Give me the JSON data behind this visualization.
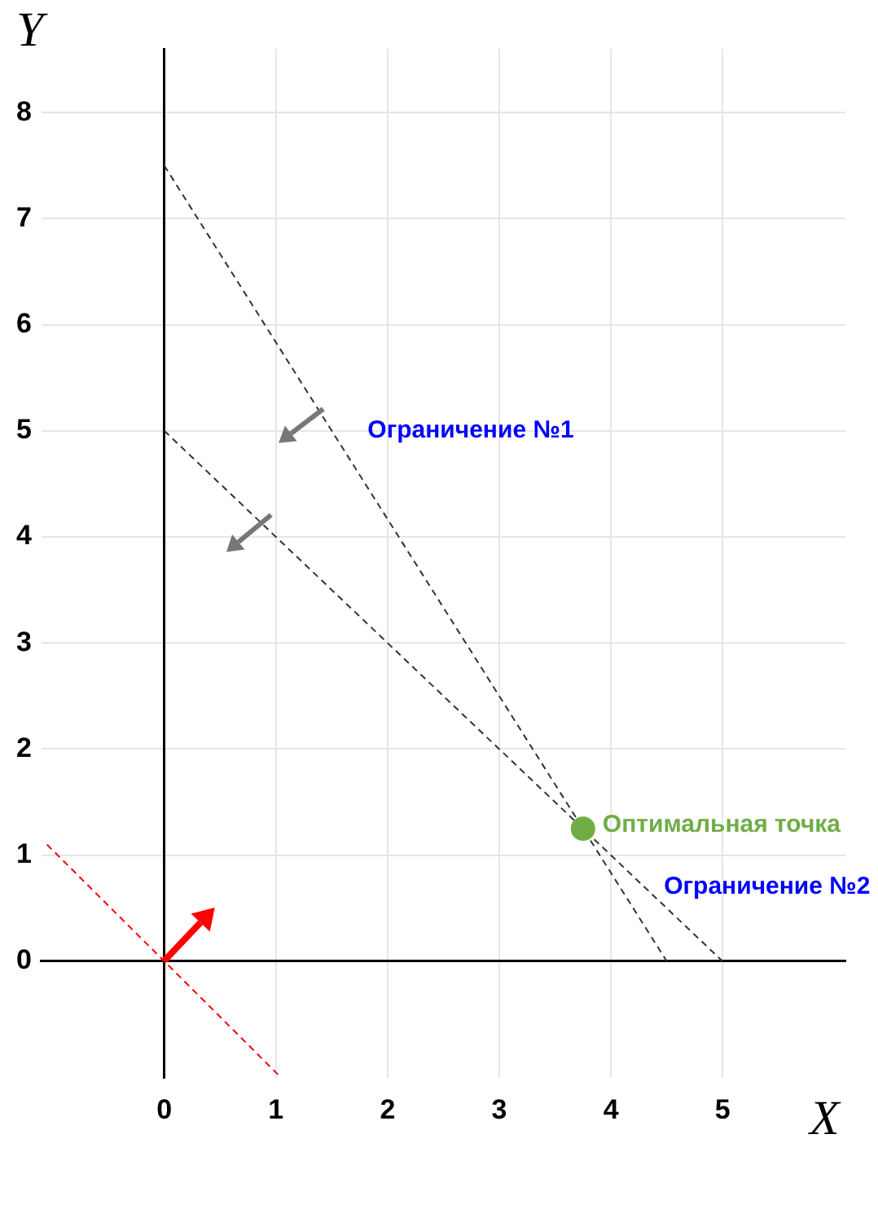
{
  "chart_data": {
    "type": "line",
    "xlabel": "X",
    "ylabel": "Y",
    "xlim": [
      -1.1,
      6.1
    ],
    "ylim": [
      -1.1,
      8.6
    ],
    "xticks": [
      0,
      1,
      2,
      3,
      4,
      5
    ],
    "yticks": [
      0,
      1,
      2,
      3,
      4,
      5,
      6,
      7,
      8
    ],
    "grid": true,
    "legend": false,
    "series": [
      {
        "color": "#333333",
        "x": [
          0,
          4.5
        ],
        "values": [
          7.5,
          0
        ],
        "line_style": "dashed",
        "marker": "none"
      },
      {
        "color": "#333333",
        "x": [
          0,
          5
        ],
        "values": [
          5,
          0
        ],
        "line_style": "dashed",
        "marker": "none"
      },
      {
        "color": "#ff0000",
        "x": [
          -1.05,
          1.05
        ],
        "values": [
          1.1,
          -1.1
        ],
        "line_style": "dashed",
        "marker": "none"
      },
      {
        "type": "scatter",
        "color": "#70ad47",
        "x": [
          3.75
        ],
        "values": [
          1.25
        ],
        "marker": "circle"
      }
    ],
    "annotations": [
      {
        "text": "Ограничение №1",
        "x": 1.5,
        "y": 5
      },
      {
        "text": "Оптимальная точка",
        "x": 3.75,
        "y": 1.25
      },
      {
        "text": "Ограничение №2",
        "x": 4.3,
        "y": 0.7
      }
    ]
  }
}
